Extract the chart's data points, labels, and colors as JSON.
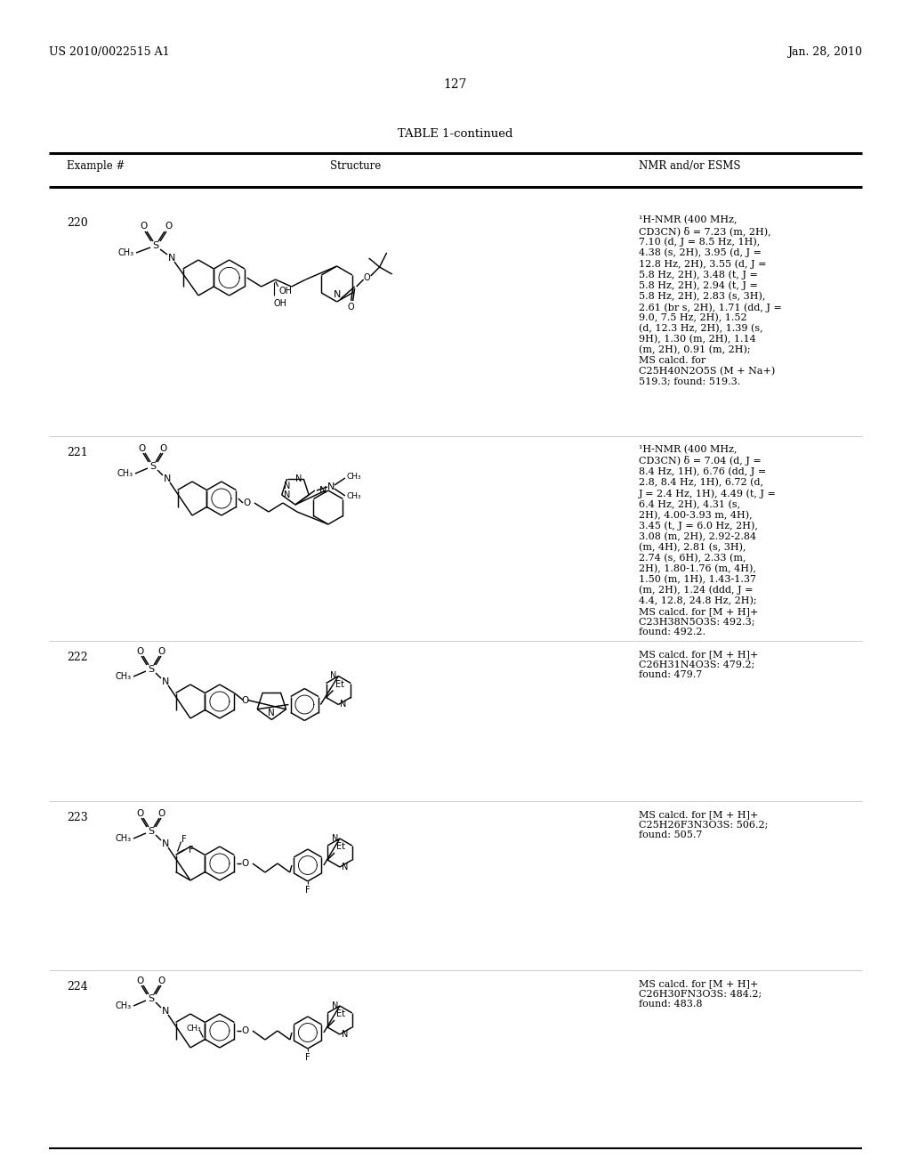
{
  "bg": "#ffffff",
  "header_left": "US 2010/0022515 A1",
  "header_right": "Jan. 28, 2010",
  "page_num": "127",
  "table_title": "TABLE 1-continued",
  "col1": "Example #",
  "col2": "Structure",
  "col3": "NMR and/or ESMS",
  "examples": [
    "220",
    "221",
    "222",
    "223",
    "224"
  ],
  "nmr": [
    "1H-NMR (400 MHz,\nCD3CN) δ = 7.23 (m, 2H),\n7.10 (d, J = 8.5 Hz, 1H),\n4.38 (s, 2H), 3.95 (d, J =\n12.8 Hz, 2H), 3.55 (d, J =\n5.8 Hz, 2H), 3.48 (t, J =\n5.8 Hz, 2H), 2.94 (t, J =\n5.8 Hz, 2H), 2.83 (s, 3H),\n2.61 (br s, 2H), 1.71 (dd, J =\n9.0, 7.5 Hz, 2H), 1.52\n(d, 12.3 Hz, 2H), 1.39 (s,\n9H), 1.30 (m, 2H), 1.14\n(m, 2H), 0.91 (m, 2H);\nMS calcd. for\nC25H40N2O5S (M + Na+)\n519.3; found: 519.3.",
    "1H-NMR (400 MHz,\nCD3CN) δ = 7.04 (d, J =\n8.4 Hz, 1H), 6.76 (dd, J =\n2.8, 8.4 Hz, 1H), 6.72 (d,\nJ = 2.4 Hz, 1H), 4.49 (t, J =\n6.4 Hz, 2H), 4.31 (s,\n2H), 4.00-3.93 m, 4H),\n3.45 (t, J = 6.0 Hz, 2H),\n3.08 (m, 2H), 2.92-2.84\n(m, 4H), 2.81 (s, 3H),\n2.74 (s, 6H), 2.33 (m,\n2H), 1.80-1.76 (m, 4H),\n1.50 (m, 1H), 1.43-1.37\n(m, 2H), 1.24 (ddd, J =\n4.4, 12.8, 24.8 Hz, 2H);\nMS calcd. for [M + H]+\nC23H38N5O3S: 492.3;\nfound: 492.2.",
    "MS calcd. for [M + H]+\nC26H31N4O3S: 479.2;\nfound: 479.7",
    "MS calcd. for [M + H]+\nC25H26F3N3O3S: 506.2;\nfound: 505.7",
    "MS calcd. for [M + H]+\nC26H30FN3O3S: 484.2;\nfound: 483.8"
  ],
  "row_tops": [
    232,
    490,
    720,
    900,
    1090
  ],
  "row_bots": [
    490,
    720,
    900,
    1090,
    1290
  ]
}
